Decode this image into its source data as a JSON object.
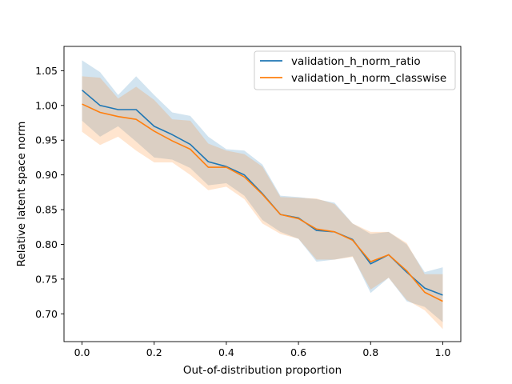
{
  "chart_data": {
    "type": "line",
    "xlabel": "Out-of-distribution proportion",
    "ylabel": "Relative latent space norm",
    "xlim": [
      -0.05,
      1.05
    ],
    "ylim": [
      0.66,
      1.085
    ],
    "x_ticks": [
      "0.0",
      "0.2",
      "0.4",
      "0.6",
      "0.8",
      "1.0"
    ],
    "y_ticks": [
      "0.70",
      "0.75",
      "0.80",
      "0.85",
      "0.90",
      "0.95",
      "1.00",
      "1.05"
    ],
    "legend_position": "top-right",
    "grid": false,
    "x": [
      0.0,
      0.05,
      0.1,
      0.15,
      0.2,
      0.25,
      0.3,
      0.35,
      0.4,
      0.45,
      0.5,
      0.55,
      0.6,
      0.65,
      0.7,
      0.75,
      0.8,
      0.85,
      0.9,
      0.95,
      1.0
    ],
    "series": [
      {
        "name": "validation_h_norm_ratio",
        "color": "#1f77b4",
        "values": [
          1.022,
          1.0,
          0.994,
          0.994,
          0.97,
          0.958,
          0.944,
          0.919,
          0.912,
          0.9,
          0.873,
          0.843,
          0.838,
          0.82,
          0.818,
          0.807,
          0.772,
          0.785,
          0.76,
          0.737,
          0.727
        ],
        "lower": [
          0.978,
          0.955,
          0.97,
          0.948,
          0.925,
          0.922,
          0.91,
          0.885,
          0.888,
          0.87,
          0.835,
          0.818,
          0.808,
          0.775,
          0.778,
          0.783,
          0.73,
          0.752,
          0.718,
          0.71,
          0.688
        ],
        "upper": [
          1.065,
          1.048,
          1.015,
          1.042,
          1.015,
          0.99,
          0.985,
          0.955,
          0.937,
          0.935,
          0.915,
          0.87,
          0.868,
          0.865,
          0.86,
          0.83,
          0.815,
          0.818,
          0.8,
          0.76,
          0.767
        ]
      },
      {
        "name": "validation_h_norm_classwise",
        "color": "#ff7f0e",
        "values": [
          1.002,
          0.99,
          0.984,
          0.98,
          0.963,
          0.949,
          0.937,
          0.911,
          0.911,
          0.897,
          0.872,
          0.843,
          0.837,
          0.822,
          0.818,
          0.806,
          0.775,
          0.785,
          0.762,
          0.731,
          0.718
        ],
        "lower": [
          0.962,
          0.943,
          0.955,
          0.935,
          0.918,
          0.918,
          0.9,
          0.878,
          0.883,
          0.865,
          0.83,
          0.815,
          0.808,
          0.778,
          0.778,
          0.782,
          0.735,
          0.752,
          0.72,
          0.705,
          0.678
        ],
        "upper": [
          1.042,
          1.04,
          1.01,
          1.027,
          1.008,
          0.98,
          0.978,
          0.945,
          0.935,
          0.93,
          0.912,
          0.868,
          0.867,
          0.866,
          0.858,
          0.83,
          0.818,
          0.818,
          0.802,
          0.757,
          0.757
        ]
      }
    ]
  }
}
